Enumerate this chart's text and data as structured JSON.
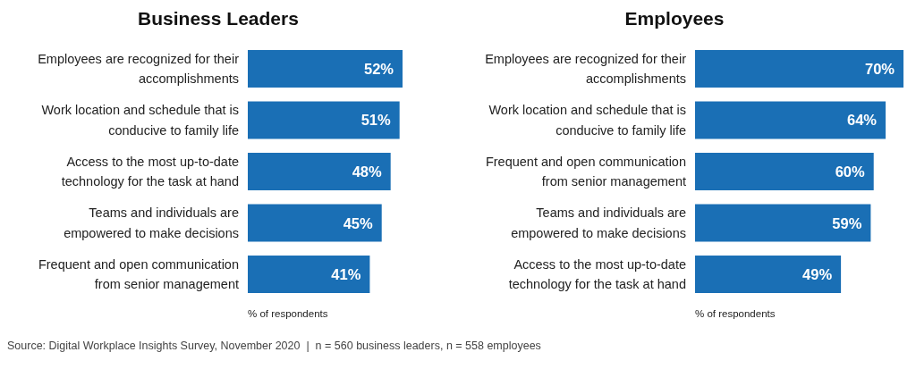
{
  "chart_data": [
    {
      "type": "bar",
      "orientation": "horizontal",
      "title": "Business Leaders",
      "xlabel": "% of respondents",
      "categories": [
        "Employees are recognized for their accomplishments",
        "Work location and schedule that is conducive to family life",
        "Access to the most up-to-date technology for the task at hand",
        "Teams and individuals are empowered to make decisions",
        "Frequent and open communication from senior management"
      ],
      "values": [
        52,
        51,
        48,
        45,
        41
      ],
      "value_labels": [
        "52%",
        "51%",
        "48%",
        "45%",
        "41%"
      ],
      "color": "#1a6fb5",
      "annotations": [
        "Source: Digital Workplace Insights Survey, November 2020  |  n = 560 business leaders, n = 558 employees"
      ]
    },
    {
      "type": "bar",
      "orientation": "horizontal",
      "title": "Employees",
      "xlabel": "% of respondents",
      "categories": [
        "Employees are recognized for their accomplishments",
        "Work location and schedule that is conducive to family life",
        "Frequent and open communication from senior management",
        "Teams and individuals are empowered to make decisions",
        "Access to the most up-to-date technology for the task at hand"
      ],
      "values": [
        70,
        64,
        60,
        59,
        49
      ],
      "value_labels": [
        "70%",
        "64%",
        "60%",
        "59%",
        "49%"
      ],
      "color": "#1a6fb5"
    }
  ]
}
